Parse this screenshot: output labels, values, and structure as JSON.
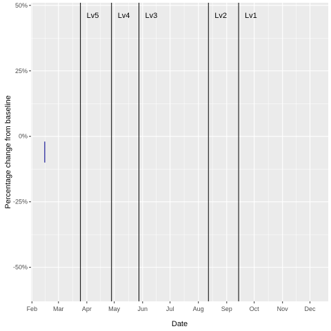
{
  "chart_data": {
    "type": "line",
    "title": "",
    "xlabel": "Date",
    "ylabel": "Percentage change from baseline",
    "x_ticks": [
      {
        "label": "Feb",
        "date": "2020-02-01"
      },
      {
        "label": "Mar",
        "date": "2020-03-01"
      },
      {
        "label": "Apr",
        "date": "2020-04-01"
      },
      {
        "label": "May",
        "date": "2020-05-01"
      },
      {
        "label": "Jun",
        "date": "2020-06-01"
      },
      {
        "label": "Jul",
        "date": "2020-07-01"
      },
      {
        "label": "Aug",
        "date": "2020-08-01"
      },
      {
        "label": "Sep",
        "date": "2020-09-01"
      },
      {
        "label": "Oct",
        "date": "2020-10-01"
      },
      {
        "label": "Nov",
        "date": "2020-11-01"
      },
      {
        "label": "Dec",
        "date": "2020-12-01"
      }
    ],
    "y_ticks": [
      {
        "label": "50%",
        "value": 50
      },
      {
        "label": "25%",
        "value": 25
      },
      {
        "label": "0%",
        "value": 0
      },
      {
        "label": "-25%",
        "value": -25
      },
      {
        "label": "-50%",
        "value": -50
      }
    ],
    "xlim": [
      "2020-01-31",
      "2020-12-21"
    ],
    "ylim": [
      -63,
      51
    ],
    "grid": true,
    "background": "#ebebeb",
    "grid_color": "#ffffff",
    "series": [
      {
        "color": "#00008b",
        "points": [
          {
            "x": "2020-02-15",
            "y": -2
          },
          {
            "x": "2020-02-15",
            "y": -10
          }
        ]
      }
    ],
    "vlines": [
      {
        "label": "Lv5",
        "date": "2020-03-25"
      },
      {
        "label": "Lv4",
        "date": "2020-04-28"
      },
      {
        "label": "Lv3",
        "date": "2020-05-28"
      },
      {
        "label": "Lv2",
        "date": "2020-08-12"
      },
      {
        "label": "Lv1",
        "date": "2020-09-14"
      }
    ]
  }
}
